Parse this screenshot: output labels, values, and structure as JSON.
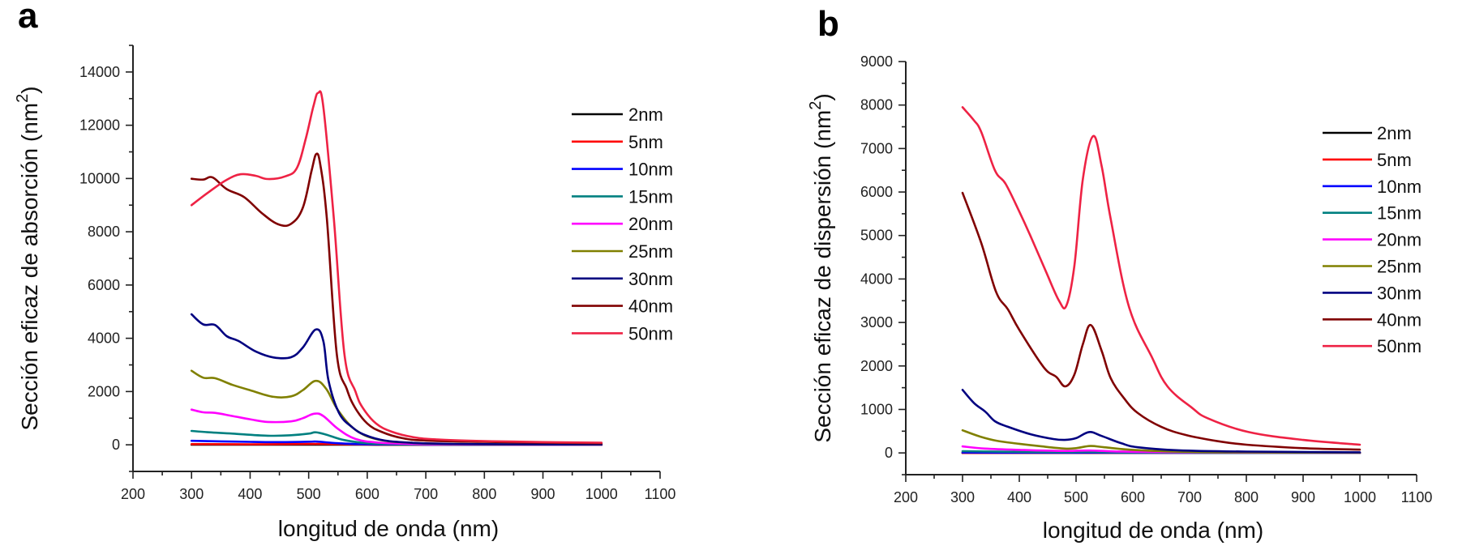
{
  "chart_data": [
    {
      "panel": "a",
      "type": "line",
      "title": "",
      "xlabel": "longitud de onda (nm)",
      "ylabel": "Sección eficaz de absorción (nm",
      "ylabel_sup": "2",
      "ylabel_close": ")",
      "xlim": [
        200,
        1100
      ],
      "ylim": [
        -1000,
        15000
      ],
      "xticks": [
        200,
        300,
        400,
        500,
        600,
        700,
        800,
        900,
        1000,
        1100
      ],
      "xtick_labels": [
        "200",
        "300",
        "400",
        "500",
        "600",
        "700",
        "800",
        "900",
        "1000",
        "1100"
      ],
      "yticks": [
        0,
        2000,
        4000,
        6000,
        8000,
        10000,
        12000,
        14000
      ],
      "ytick_labels": [
        "0",
        "2000",
        "4000",
        "6000",
        "8000",
        "10000",
        "12000",
        "14000"
      ],
      "grid": false,
      "legend_position": "right",
      "series": [
        {
          "name": "2nm",
          "color": "#000000",
          "x": [
            300,
            400,
            500,
            520,
            600,
            700,
            800,
            900,
            1000
          ],
          "y": [
            5,
            4,
            6,
            7,
            3,
            1,
            1,
            0,
            0
          ]
        },
        {
          "name": "5nm",
          "color": "#ff0000",
          "x": [
            300,
            400,
            500,
            520,
            600,
            700,
            800,
            900,
            1000
          ],
          "y": [
            25,
            20,
            30,
            30,
            10,
            5,
            3,
            2,
            2
          ]
        },
        {
          "name": "10nm",
          "color": "#0000ff",
          "x": [
            300,
            350,
            400,
            450,
            500,
            515,
            550,
            600,
            700,
            800,
            900,
            1000
          ],
          "y": [
            150,
            130,
            110,
            100,
            115,
            120,
            60,
            20,
            8,
            5,
            3,
            2
          ]
        },
        {
          "name": "15nm",
          "color": "#008080",
          "x": [
            300,
            330,
            370,
            430,
            470,
            500,
            512,
            530,
            560,
            600,
            650,
            700,
            800,
            900,
            1000
          ],
          "y": [
            520,
            470,
            420,
            340,
            360,
            420,
            470,
            380,
            180,
            60,
            25,
            12,
            6,
            4,
            3
          ]
        },
        {
          "name": "20nm",
          "color": "#ff00ff",
          "x": [
            300,
            320,
            340,
            370,
            400,
            430,
            470,
            490,
            510,
            525,
            550,
            580,
            620,
            680,
            750,
            850,
            1000
          ],
          "y": [
            1320,
            1220,
            1200,
            1080,
            960,
            860,
            880,
            1000,
            1170,
            1080,
            600,
            220,
            80,
            30,
            15,
            8,
            5
          ]
        },
        {
          "name": "25nm",
          "color": "#808000",
          "x": [
            300,
            320,
            340,
            370,
            400,
            440,
            470,
            490,
            512,
            530,
            550,
            580,
            620,
            680,
            750,
            850,
            1000
          ],
          "y": [
            2780,
            2520,
            2500,
            2250,
            2050,
            1800,
            1820,
            2050,
            2400,
            2100,
            1300,
            560,
            190,
            70,
            30,
            15,
            10
          ]
        },
        {
          "name": "30nm",
          "color": "#000080",
          "x": [
            300,
            320,
            340,
            360,
            380,
            410,
            440,
            470,
            490,
            512,
            525,
            534,
            552,
            575,
            596,
            630,
            680,
            750,
            850,
            1000
          ],
          "y": [
            4900,
            4520,
            4500,
            4080,
            3900,
            3500,
            3280,
            3290,
            3650,
            4330,
            3900,
            2400,
            1190,
            650,
            370,
            160,
            70,
            35,
            20,
            15
          ]
        },
        {
          "name": "40nm",
          "color": "#800000",
          "x": [
            300,
            320,
            336,
            360,
            390,
            420,
            448,
            470,
            490,
            505,
            513,
            520,
            531,
            548,
            565,
            579,
            600,
            624,
            660,
            700,
            800,
            900,
            1000
          ],
          "y": [
            9990,
            9960,
            10040,
            9600,
            9300,
            8700,
            8280,
            8300,
            8900,
            10300,
            10920,
            10500,
            8490,
            3410,
            2100,
            1400,
            800,
            490,
            250,
            160,
            110,
            80,
            60
          ]
        },
        {
          "name": "50nm",
          "color": "#ee2244",
          "x": [
            300,
            330,
            360,
            384,
            410,
            430,
            460,
            480,
            495,
            508,
            516,
            525,
            543,
            561,
            580,
            592,
            615,
            642,
            680,
            720,
            800,
            900,
            1000
          ],
          "y": [
            9000,
            9500,
            9950,
            10160,
            10100,
            9980,
            10080,
            10400,
            11500,
            12700,
            13210,
            12700,
            8490,
            3410,
            2000,
            1400,
            800,
            490,
            280,
            200,
            140,
            100,
            80
          ]
        }
      ]
    },
    {
      "panel": "b",
      "type": "line",
      "title": "",
      "xlabel": "longitud de onda (nm)",
      "ylabel": "Sección eficaz de dispersión (nm",
      "ylabel_sup": "2",
      "ylabel_close": ")",
      "xlim": [
        200,
        1100
      ],
      "ylim": [
        -500,
        9000
      ],
      "xticks": [
        200,
        300,
        400,
        500,
        600,
        700,
        800,
        900,
        1000,
        1100
      ],
      "xtick_labels": [
        "200",
        "300",
        "400",
        "500",
        "600",
        "700",
        "800",
        "900",
        "1000",
        "1100"
      ],
      "yticks": [
        0,
        1000,
        2000,
        3000,
        4000,
        5000,
        6000,
        7000,
        8000,
        9000
      ],
      "ytick_labels": [
        "0",
        "1000",
        "2000",
        "3000",
        "4000",
        "5000",
        "6000",
        "7000",
        "8000",
        "9000"
      ],
      "grid": false,
      "legend_position": "right",
      "series": [
        {
          "name": "2nm",
          "color": "#000000",
          "x": [
            300,
            500,
            700,
            1000
          ],
          "y": [
            0,
            0,
            0,
            0
          ]
        },
        {
          "name": "5nm",
          "color": "#ff0000",
          "x": [
            300,
            500,
            700,
            1000
          ],
          "y": [
            1,
            1,
            0,
            0
          ]
        },
        {
          "name": "10nm",
          "color": "#0000ff",
          "x": [
            300,
            400,
            500,
            525,
            600,
            800,
            1000
          ],
          "y": [
            10,
            6,
            5,
            6,
            3,
            1,
            0
          ]
        },
        {
          "name": "15nm",
          "color": "#008080",
          "x": [
            300,
            400,
            480,
            525,
            600,
            800,
            1000
          ],
          "y": [
            40,
            25,
            18,
            22,
            10,
            3,
            1
          ]
        },
        {
          "name": "20nm",
          "color": "#ff00ff",
          "x": [
            300,
            340,
            400,
            480,
            525,
            600,
            800,
            1000
          ],
          "y": [
            150,
            100,
            70,
            45,
            55,
            25,
            8,
            3
          ]
        },
        {
          "name": "25nm",
          "color": "#808000",
          "x": [
            300,
            330,
            360,
            400,
            440,
            480,
            500,
            525,
            550,
            600,
            700,
            800,
            1000
          ],
          "y": [
            520,
            380,
            280,
            210,
            150,
            100,
            110,
            160,
            130,
            70,
            25,
            12,
            5
          ]
        },
        {
          "name": "30nm",
          "color": "#000080",
          "x": [
            300,
            320,
            340,
            357,
            380,
            420,
            460,
            480,
            500,
            523,
            545,
            580,
            609,
            680,
            800,
            1000
          ],
          "y": [
            1450,
            1150,
            950,
            730,
            600,
            430,
            320,
            300,
            340,
            480,
            390,
            220,
            130,
            60,
            30,
            15
          ]
        },
        {
          "name": "40nm",
          "color": "#800000",
          "x": [
            300,
            333,
            359,
            380,
            400,
            443,
            465,
            481,
            497,
            512,
            526,
            545,
            561,
            585,
            609,
            650,
            694,
            750,
            800,
            900,
            1000
          ],
          "y": [
            5980,
            4825,
            3707,
            3300,
            2830,
            1970,
            1750,
            1530,
            1800,
            2500,
            2940,
            2350,
            1720,
            1250,
            915,
            600,
            410,
            270,
            190,
            110,
            75
          ]
        },
        {
          "name": "50nm",
          "color": "#ee2244",
          "x": [
            300,
            320,
            333,
            357,
            376,
            400,
            419,
            447,
            470,
            483,
            497,
            512,
            530,
            545,
            561,
            593,
            633,
            661,
            704,
            733,
            804,
            900,
            1000
          ],
          "y": [
            7950,
            7650,
            7380,
            6500,
            6185,
            5550,
            5010,
            4170,
            3500,
            3390,
            4300,
            6300,
            7284,
            6600,
            5380,
            3370,
            2217,
            1530,
            1040,
            790,
            480,
            300,
            190
          ]
        }
      ]
    }
  ]
}
